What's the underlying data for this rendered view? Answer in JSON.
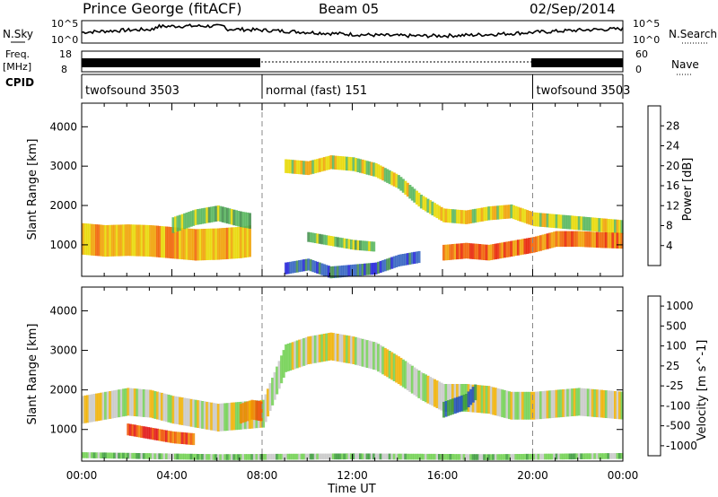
{
  "header": {
    "station": "Prince George (fitACF)",
    "beam": "Beam 05",
    "date": "02/Sep/2014"
  },
  "left_labels": {
    "nsky": "N.Sky",
    "freq": "Freq.",
    "freq_unit": "[MHz]",
    "cpid": "CPID"
  },
  "right_labels": {
    "nsearch": "N.Search",
    "nave": "Nave"
  },
  "noise_axis": {
    "top": "10^5",
    "bottom": "10^0"
  },
  "freq_axis": {
    "top": "18",
    "bottom": "8"
  },
  "nave_axis": {
    "top": "60",
    "bottom": "0"
  },
  "cpid_segments": [
    {
      "label": "twofsound 3503",
      "start": 0,
      "end": 8
    },
    {
      "label": "normal (fast) 151",
      "start": 8,
      "end": 20
    },
    {
      "label": "twofsound 3503",
      "start": 20,
      "end": 24
    }
  ],
  "colors": {
    "power": [
      "#1f1fd8",
      "#3060c0",
      "#3f8c4a",
      "#55b55a",
      "#e8d800",
      "#f0a000",
      "#f06000",
      "#e82000"
    ],
    "velocity": [
      "#e01010",
      "#f05000",
      "#f08a00",
      "#f0b000",
      "#c8c8c8",
      "#70d050",
      "#3a9a3a",
      "#2050c0"
    ]
  },
  "chart_data": [
    {
      "type": "heatmap",
      "title": "Power",
      "xlabel": "",
      "ylabel": "Slant Range [km]",
      "xlim": [
        0,
        24
      ],
      "ylim": [
        200,
        4600
      ],
      "yticks": [
        "1000",
        "2000",
        "3000",
        "4000"
      ],
      "colorbar_label": "Power [dB]",
      "colorbar_ticks": [
        "4",
        "8",
        "12",
        "16",
        "20",
        "24",
        "28"
      ],
      "bands": [
        {
          "t": [
            0,
            1,
            2,
            3,
            4,
            5,
            6,
            7,
            7.5
          ],
          "range": [
            1150,
            1100,
            1120,
            1100,
            1050,
            1000,
            1020,
            1060,
            1100
          ],
          "width": 800,
          "level": 5
        },
        {
          "t": [
            4,
            5,
            6,
            7,
            7.5
          ],
          "range": [
            1500,
            1700,
            1800,
            1650,
            1600
          ],
          "width": 400,
          "level": 3
        },
        {
          "t": [
            9,
            10,
            11,
            12,
            13,
            14,
            15,
            16,
            17,
            18,
            19,
            20,
            21,
            22,
            23,
            24
          ],
          "range": [
            3000,
            2950,
            3100,
            3050,
            2900,
            2600,
            2100,
            1750,
            1700,
            1800,
            1850,
            1650,
            1600,
            1550,
            1500,
            1450
          ],
          "width": 350,
          "level": 4
        },
        {
          "t": [
            16,
            17,
            18,
            19,
            20,
            21,
            22,
            23,
            24
          ],
          "range": [
            800,
            850,
            800,
            900,
            1000,
            1150,
            1150,
            1120,
            1100
          ],
          "width": 400,
          "level": 6
        },
        {
          "t": [
            10,
            11,
            12,
            13
          ],
          "range": [
            1200,
            1100,
            1000,
            950
          ],
          "width": 250,
          "level": 3
        },
        {
          "t": [
            9,
            10,
            11,
            12,
            13,
            14,
            15
          ],
          "range": [
            400,
            500,
            300,
            350,
            400,
            600,
            700
          ],
          "width": 300,
          "level": 1
        }
      ]
    },
    {
      "type": "heatmap",
      "title": "Velocity",
      "xlabel": "Time UT",
      "ylabel": "Slant Range [km]",
      "xlim": [
        0,
        24
      ],
      "ylim": [
        200,
        4600
      ],
      "xticks": [
        "00:00",
        "04:00",
        "08:00",
        "12:00",
        "16:00",
        "20:00",
        "00:00"
      ],
      "yticks": [
        "1000",
        "2000",
        "3000",
        "4000"
      ],
      "colorbar_label": "Velocity [m s^-1]",
      "colorbar_ticks": [
        "1000",
        "500",
        "100",
        "25",
        "-25",
        "-100",
        "-500",
        "-1000"
      ],
      "bands": [
        {
          "t": [
            0,
            1,
            2,
            3,
            4,
            5,
            6,
            7,
            8,
            9,
            10,
            11,
            12,
            13,
            14,
            15,
            16,
            17,
            18,
            19,
            20,
            21,
            22,
            23,
            24
          ],
          "range": [
            1500,
            1600,
            1700,
            1650,
            1500,
            1400,
            1300,
            1350,
            1400,
            2800,
            3000,
            3100,
            3000,
            2850,
            2500,
            2100,
            1800,
            1800,
            1750,
            1600,
            1600,
            1650,
            1700,
            1650,
            1600
          ],
          "width": 700,
          "level": 4
        },
        {
          "t": [
            2,
            3,
            4,
            5
          ],
          "range": [
            1000,
            900,
            800,
            750
          ],
          "width": 300,
          "level": 1
        },
        {
          "t": [
            7,
            7.5,
            8
          ],
          "range": [
            1400,
            1500,
            1450
          ],
          "width": 500,
          "level": 2
        },
        {
          "t": [
            16,
            17,
            17.5
          ],
          "range": [
            1500,
            1700,
            2000
          ],
          "width": 400,
          "level": 7
        },
        {
          "t": [
            0,
            6,
            12,
            18,
            24
          ],
          "range": [
            350,
            300,
            320,
            300,
            330
          ],
          "width": 150,
          "level": 5
        }
      ]
    }
  ]
}
